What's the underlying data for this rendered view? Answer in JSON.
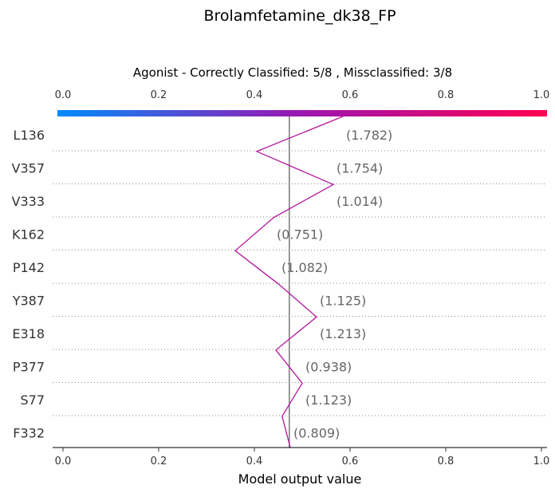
{
  "chart_data": {
    "type": "line",
    "title": "Brolamfetamine_dk38_FP",
    "subtitle": "Agonist - Correctly Classified: 5/8 , Missclassified: 3/8",
    "xlabel": "Model output value",
    "xlim": [
      0.0,
      1.0
    ],
    "ticks": [
      "0.0",
      "0.2",
      "0.4",
      "0.6",
      "0.8",
      "1.0"
    ],
    "tick_values": [
      0.0,
      0.2,
      0.4,
      0.6,
      0.8,
      1.0
    ],
    "base_value": 0.473,
    "colorbar": {
      "from": "#008bfb",
      "mid": "#9c16b0",
      "to": "#ff0052"
    },
    "line_color": "#b5179e",
    "features": [
      {
        "name": "L136",
        "value_label": "(1.782)",
        "output": 0.585
      },
      {
        "name": "V357",
        "value_label": "(1.754)",
        "output": 0.405
      },
      {
        "name": "V333",
        "value_label": "(1.014)",
        "output": 0.565
      },
      {
        "name": "K162",
        "value_label": "(0.751)",
        "output": 0.44
      },
      {
        "name": "P142",
        "value_label": "(1.082)",
        "output": 0.36
      },
      {
        "name": "Y387",
        "value_label": "(1.125)",
        "output": 0.45
      },
      {
        "name": "E318",
        "value_label": "(1.213)",
        "output": 0.53
      },
      {
        "name": "P377",
        "value_label": "(0.938)",
        "output": 0.445
      },
      {
        "name": "S77",
        "value_label": "(1.123)",
        "output": 0.5
      },
      {
        "name": "F332",
        "value_label": "(0.809)",
        "output": 0.458
      }
    ],
    "end_output": 0.475
  }
}
